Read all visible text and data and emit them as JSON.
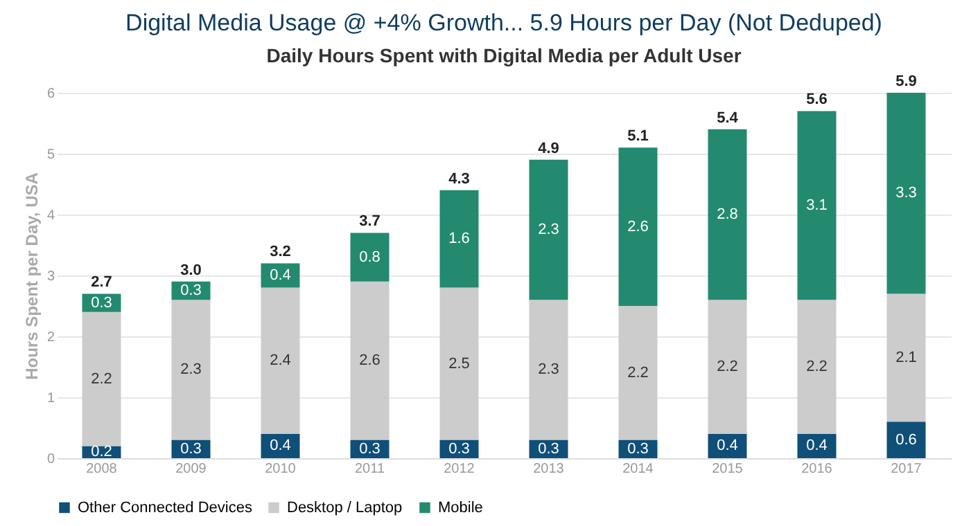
{
  "chart_data": {
    "type": "bar",
    "title": "Digital Media Usage @ +4% Growth... 5.9 Hours per Day (Not Deduped)",
    "subtitle": "Daily Hours Spent with Digital Media per Adult User",
    "ylabel": "Hours Spent per Day, USA",
    "categories": [
      "2008",
      "2009",
      "2010",
      "2011",
      "2012",
      "2013",
      "2014",
      "2015",
      "2016",
      "2017"
    ],
    "stacked": true,
    "series": [
      {
        "name": "Other Connected Devices",
        "color": "#0f4f78",
        "values": [
          0.2,
          0.3,
          0.4,
          0.3,
          0.3,
          0.3,
          0.3,
          0.4,
          0.4,
          0.6
        ]
      },
      {
        "name": "Desktop / Laptop",
        "color": "#cccccc",
        "values": [
          2.2,
          2.3,
          2.4,
          2.6,
          2.5,
          2.3,
          2.2,
          2.2,
          2.2,
          2.1
        ]
      },
      {
        "name": "Mobile",
        "color": "#238a6f",
        "values": [
          0.3,
          0.3,
          0.4,
          0.8,
          1.6,
          2.3,
          2.6,
          2.8,
          3.1,
          3.3
        ]
      }
    ],
    "totals": [
      "2.7",
      "3.0",
      "3.2",
      "3.7",
      "4.3",
      "4.9",
      "5.1",
      "5.4",
      "5.6",
      "5.9"
    ],
    "data_labels": true,
    "ylim": [
      0,
      6
    ],
    "yticks": [
      0,
      1,
      2,
      3,
      4,
      5,
      6
    ],
    "grid": "y",
    "legend": "bottom"
  }
}
